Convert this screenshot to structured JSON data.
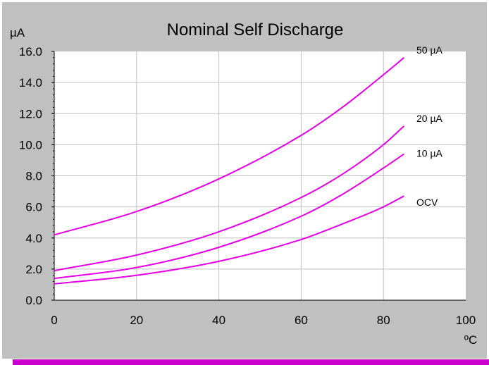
{
  "colors": {
    "background": "#c0c0c0",
    "plot": "#ffffff",
    "grid": "#c0c0c0",
    "series": "#e600e6",
    "accent": "#cc00cc"
  },
  "chart_data": {
    "type": "line",
    "title": "Nominal Self Discharge",
    "ylabel": "µA",
    "xlabel": "ºC",
    "xlim": [
      0,
      100
    ],
    "ylim": [
      0,
      16
    ],
    "xticks": [
      "0",
      "20",
      "40",
      "60",
      "80",
      "100"
    ],
    "yticks": [
      "0.0",
      "2.0",
      "4.0",
      "6.0",
      "8.0",
      "10.0",
      "12.0",
      "14.0",
      "16.0"
    ],
    "grid": true,
    "series": [
      {
        "name": "50 µA",
        "x": [
          0,
          20,
          40,
          60,
          70,
          80,
          85
        ],
        "y": [
          4.2,
          5.7,
          7.8,
          10.6,
          12.4,
          14.5,
          15.6
        ]
      },
      {
        "name": "20 µA",
        "x": [
          0,
          20,
          40,
          60,
          70,
          80,
          85
        ],
        "y": [
          1.9,
          2.9,
          4.4,
          6.6,
          8.1,
          10.0,
          11.2
        ]
      },
      {
        "name": "10 µA",
        "x": [
          0,
          20,
          40,
          60,
          70,
          80,
          85
        ],
        "y": [
          1.4,
          2.1,
          3.4,
          5.4,
          6.8,
          8.5,
          9.4
        ]
      },
      {
        "name": "OCV",
        "x": [
          0,
          20,
          40,
          60,
          70,
          80,
          85
        ],
        "y": [
          1.05,
          1.6,
          2.5,
          3.9,
          4.9,
          6.0,
          6.7
        ]
      }
    ]
  }
}
